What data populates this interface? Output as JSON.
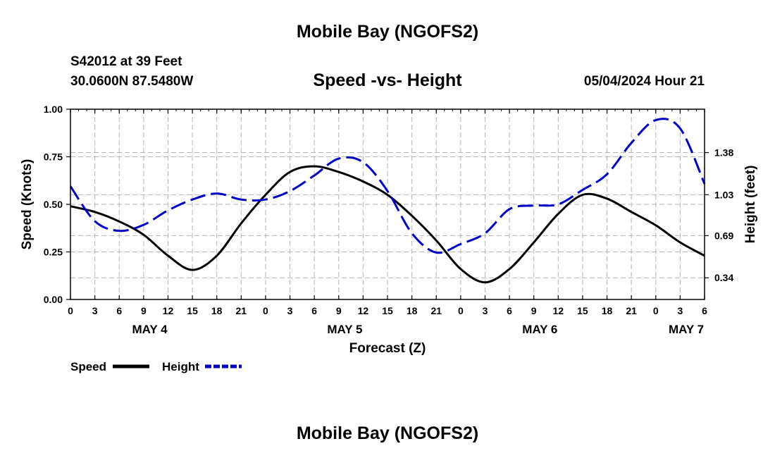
{
  "header": {
    "title": "Mobile Bay (NGOFS2)",
    "station": "S42012 at 39 Feet",
    "coords": "30.0600N  87.5480W",
    "subtitle": "Speed -vs- Height",
    "datetime": "05/04/2024 Hour 21",
    "footer_title": "Mobile Bay (NGOFS2)"
  },
  "colors": {
    "speed": "#000000",
    "height": "#0000cc",
    "grid": "#b4b4b4"
  },
  "chart_data": {
    "type": "line",
    "title": "Speed -vs- Height",
    "xlabel": "Forecast (Z)",
    "ylabel": "Speed (Knots)",
    "y2label": "Height (feet)",
    "xlim": [
      0,
      78
    ],
    "ylim": [
      0,
      1.0
    ],
    "y2lim": [
      0.16,
      1.74
    ],
    "x_tick_labels": [
      "0",
      "3",
      "6",
      "9",
      "12",
      "15",
      "18",
      "21",
      "0",
      "3",
      "6",
      "9",
      "12",
      "15",
      "18",
      "21",
      "0",
      "3",
      "6",
      "9",
      "12",
      "15",
      "18",
      "21",
      "0",
      "3",
      "6"
    ],
    "y_ticks": [
      0.0,
      0.25,
      0.5,
      0.75,
      1.0
    ],
    "y_tick_labels": [
      "0.00",
      "0.25",
      "0.50",
      "0.75",
      "1.00"
    ],
    "y2_ticks": [
      0.34,
      0.69,
      1.03,
      1.38
    ],
    "y2_tick_labels": [
      "0.34",
      "0.69",
      "1.03",
      "1.38"
    ],
    "day_labels": [
      {
        "label": "MAY 4",
        "x": 9.75
      },
      {
        "label": "MAY 5",
        "x": 33.75
      },
      {
        "label": "MAY 6",
        "x": 57.75
      },
      {
        "label": "MAY 7",
        "x": 75.75
      }
    ],
    "grid": true,
    "series": [
      {
        "name": "Speed",
        "axis": "left",
        "style": "solid",
        "x": [
          0,
          3,
          6,
          9,
          12,
          15,
          18,
          21,
          24,
          27,
          30,
          33,
          36,
          39,
          42,
          45,
          48,
          51,
          54,
          57,
          60,
          63,
          66,
          69,
          72,
          75,
          78
        ],
        "y": [
          0.49,
          0.46,
          0.41,
          0.34,
          0.23,
          0.155,
          0.23,
          0.4,
          0.55,
          0.67,
          0.7,
          0.67,
          0.62,
          0.55,
          0.44,
          0.31,
          0.16,
          0.09,
          0.16,
          0.3,
          0.45,
          0.55,
          0.53,
          0.46,
          0.39,
          0.3,
          0.23
        ]
      },
      {
        "name": "Height",
        "axis": "right",
        "style": "dashed",
        "x": [
          0,
          3,
          6,
          9,
          12,
          15,
          18,
          21,
          24,
          27,
          30,
          33,
          36,
          39,
          42,
          45,
          48,
          51,
          54,
          57,
          60,
          63,
          66,
          69,
          72,
          75,
          78
        ],
        "y": [
          1.1,
          0.81,
          0.73,
          0.78,
          0.9,
          0.99,
          1.04,
          0.99,
          0.99,
          1.06,
          1.19,
          1.33,
          1.3,
          1.06,
          0.71,
          0.55,
          0.62,
          0.71,
          0.91,
          0.94,
          0.95,
          1.07,
          1.2,
          1.46,
          1.65,
          1.58,
          1.12
        ]
      }
    ],
    "legend": [
      {
        "label": "Speed",
        "series": "Speed"
      },
      {
        "label": "Height",
        "series": "Height"
      }
    ],
    "legend_position": "bottom-left"
  }
}
